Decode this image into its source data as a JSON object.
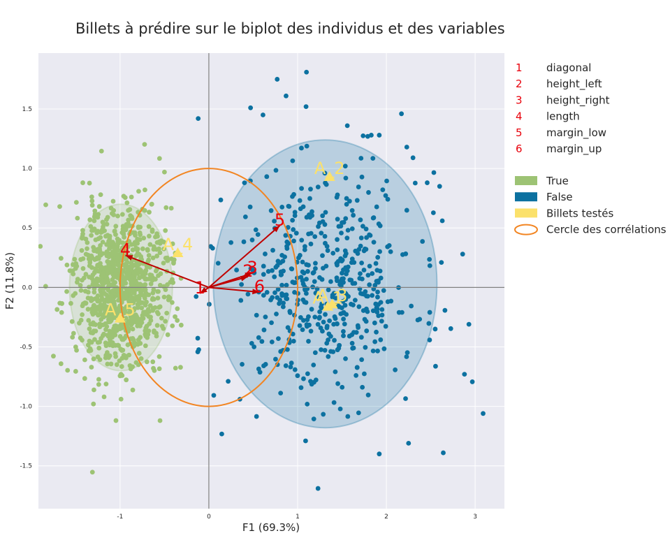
{
  "chart_data": {
    "type": "scatter",
    "title": "Billets à prédire sur le biplot des individus et des variables",
    "xlabel": "F1 (69.3%)",
    "ylabel": "F2 (11.8%)",
    "xlim": [
      -1.92,
      3.33
    ],
    "ylim": [
      -1.86,
      1.97
    ],
    "xticks": [
      -1,
      0,
      1,
      2,
      3
    ],
    "yticks": [
      -1.5,
      -1.0,
      -0.5,
      0.0,
      0.5,
      1.0,
      1.5
    ],
    "grid": true,
    "legend_position": "outside-right",
    "colors": {
      "true": "#9dc374",
      "false": "#0c71a0",
      "tested": "#fbe16b",
      "circle": "#f28522",
      "arrows": "#c00000",
      "numbers": "#e8000b",
      "axis_lines": "#808080",
      "background": "#eaeaf2"
    },
    "variables": [
      {
        "num": "1",
        "name": "diagonal",
        "x": -0.1,
        "y": -0.05
      },
      {
        "num": "2",
        "name": "height_left",
        "x": 0.44,
        "y": 0.09
      },
      {
        "num": "3",
        "name": "height_right",
        "x": 0.49,
        "y": 0.12
      },
      {
        "num": "4",
        "name": "length",
        "x": -0.94,
        "y": 0.27
      },
      {
        "num": "5",
        "name": "margin_low",
        "x": 0.8,
        "y": 0.52
      },
      {
        "num": "6",
        "name": "margin_up",
        "x": 0.57,
        "y": -0.04
      }
    ],
    "series": [
      {
        "name": "True",
        "ellipse": {
          "cx": -0.99,
          "cy": 0.0,
          "rx": 0.58,
          "ry": 0.7
        },
        "cluster": {
          "cx": -0.99,
          "cy": 0.0,
          "sx": 0.26,
          "sy": 0.33,
          "n": 1000
        },
        "points": [
          [
            -1.68,
            0.68
          ],
          [
            -1.42,
            0.88
          ],
          [
            -1.3,
            -0.98
          ],
          [
            -1.18,
            -0.92
          ],
          [
            -0.55,
            -1.12
          ],
          [
            -0.5,
            0.97
          ],
          [
            -0.72,
            0.82
          ],
          [
            -1.5,
            -0.5
          ],
          [
            -1.46,
            -0.3
          ],
          [
            -1.42,
            0.45
          ]
        ]
      },
      {
        "name": "False",
        "ellipse": {
          "cx": 1.31,
          "cy": 0.03,
          "rx": 1.26,
          "ry": 1.21
        },
        "cluster": {
          "cx": 1.31,
          "cy": 0.0,
          "sx": 0.52,
          "sy": 0.46,
          "n": 500
        },
        "points": [
          [
            -0.12,
            1.42
          ],
          [
            0.47,
            1.51
          ],
          [
            0.61,
            1.45
          ],
          [
            0.77,
            1.75
          ],
          [
            0.87,
            1.61
          ],
          [
            1.1,
            1.81
          ],
          [
            1.56,
            1.36
          ],
          [
            1.79,
            1.27
          ],
          [
            1.83,
            1.28
          ],
          [
            1.92,
            1.28
          ],
          [
            2.17,
            1.46
          ],
          [
            2.23,
            1.18
          ],
          [
            2.3,
            1.09
          ],
          [
            2.46,
            0.88
          ],
          [
            2.6,
            0.85
          ],
          [
            2.63,
            0.56
          ],
          [
            2.55,
            -0.35
          ],
          [
            2.62,
            0.21
          ],
          [
            2.93,
            -0.31
          ],
          [
            2.88,
            -0.73
          ],
          [
            3.09,
            -1.06
          ],
          [
            1.23,
            -1.69
          ],
          [
            1.92,
            -1.4
          ],
          [
            2.25,
            -1.31
          ],
          [
            1.09,
            -1.29
          ],
          [
            0.35,
            -0.94
          ]
        ]
      },
      {
        "name": "Billets testés",
        "points": [
          {
            "label": "A_1",
            "x": 1.34,
            "y": -0.16
          },
          {
            "label": "A_2",
            "x": 1.36,
            "y": 0.93
          },
          {
            "label": "A_3",
            "x": 1.39,
            "y": -0.14
          },
          {
            "label": "A_4",
            "x": -0.35,
            "y": 0.29
          },
          {
            "label": "A_5",
            "x": -1.0,
            "y": -0.26
          }
        ]
      }
    ],
    "correlation_circle": {
      "cx": 0,
      "cy": 0,
      "r": 1
    },
    "legend": [
      "True",
      "False",
      "Billets testés",
      "Cercle des corrélations"
    ]
  }
}
